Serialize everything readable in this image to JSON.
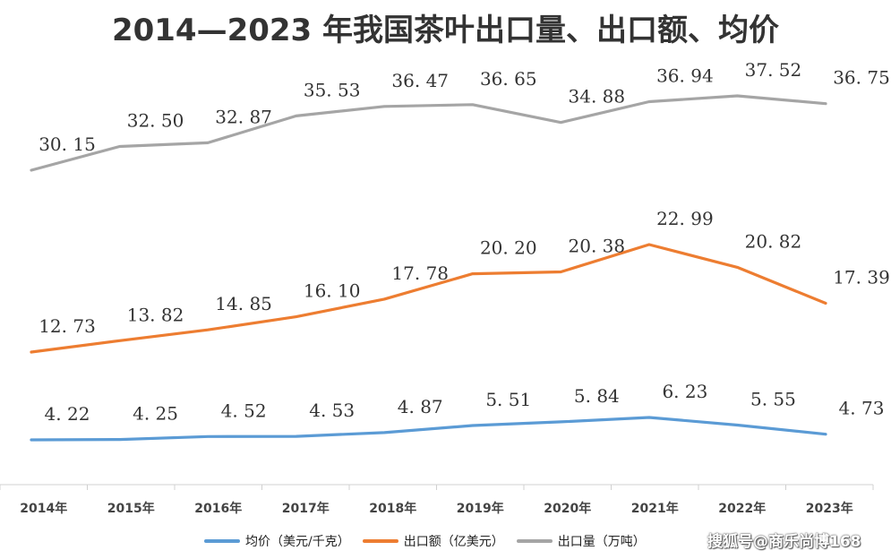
{
  "chart_data": {
    "type": "line",
    "title": "2014—2023 年我国茶叶出口量、出口额、均价",
    "categories": [
      "2014年",
      "2015年",
      "2016年",
      "2017年",
      "2018年",
      "2019年",
      "2020年",
      "2021年",
      "2022年",
      "2023年"
    ],
    "data_labels": {
      "volume": [
        "30. 15",
        "32. 50",
        "32. 87",
        "35. 53",
        "36. 47",
        "36. 65",
        "34. 88",
        "36. 94",
        "37. 52",
        "36. 75"
      ],
      "value": [
        "12. 73",
        "13. 82",
        "14. 85",
        "16. 10",
        "17. 78",
        "20. 20",
        "20. 38",
        "22. 99",
        "20. 82",
        "17. 39"
      ],
      "price": [
        "4. 22",
        "4. 25",
        "4. 52",
        "4. 53",
        "4. 87",
        "5. 51",
        "5. 84",
        "6. 23",
        "5. 55",
        "4. 73"
      ]
    },
    "series": [
      {
        "key": "price",
        "name": "均价（美元/千克）",
        "color": "#5b9bd5",
        "values": [
          4.22,
          4.25,
          4.52,
          4.53,
          4.87,
          5.51,
          5.84,
          6.23,
          5.55,
          4.73
        ]
      },
      {
        "key": "value",
        "name": "出口额（亿美元）",
        "color": "#ed7d31",
        "values": [
          12.73,
          13.82,
          14.85,
          16.1,
          17.78,
          20.2,
          20.38,
          22.99,
          20.82,
          17.39
        ]
      },
      {
        "key": "volume",
        "name": "出口量（万吨）",
        "color": "#a5a5a5",
        "values": [
          30.15,
          32.5,
          32.87,
          35.53,
          36.47,
          36.65,
          34.88,
          36.94,
          37.52,
          36.75
        ]
      }
    ],
    "grid": false,
    "legend_position": "bottom"
  },
  "watermark": "搜狐号@商乐尚博168"
}
